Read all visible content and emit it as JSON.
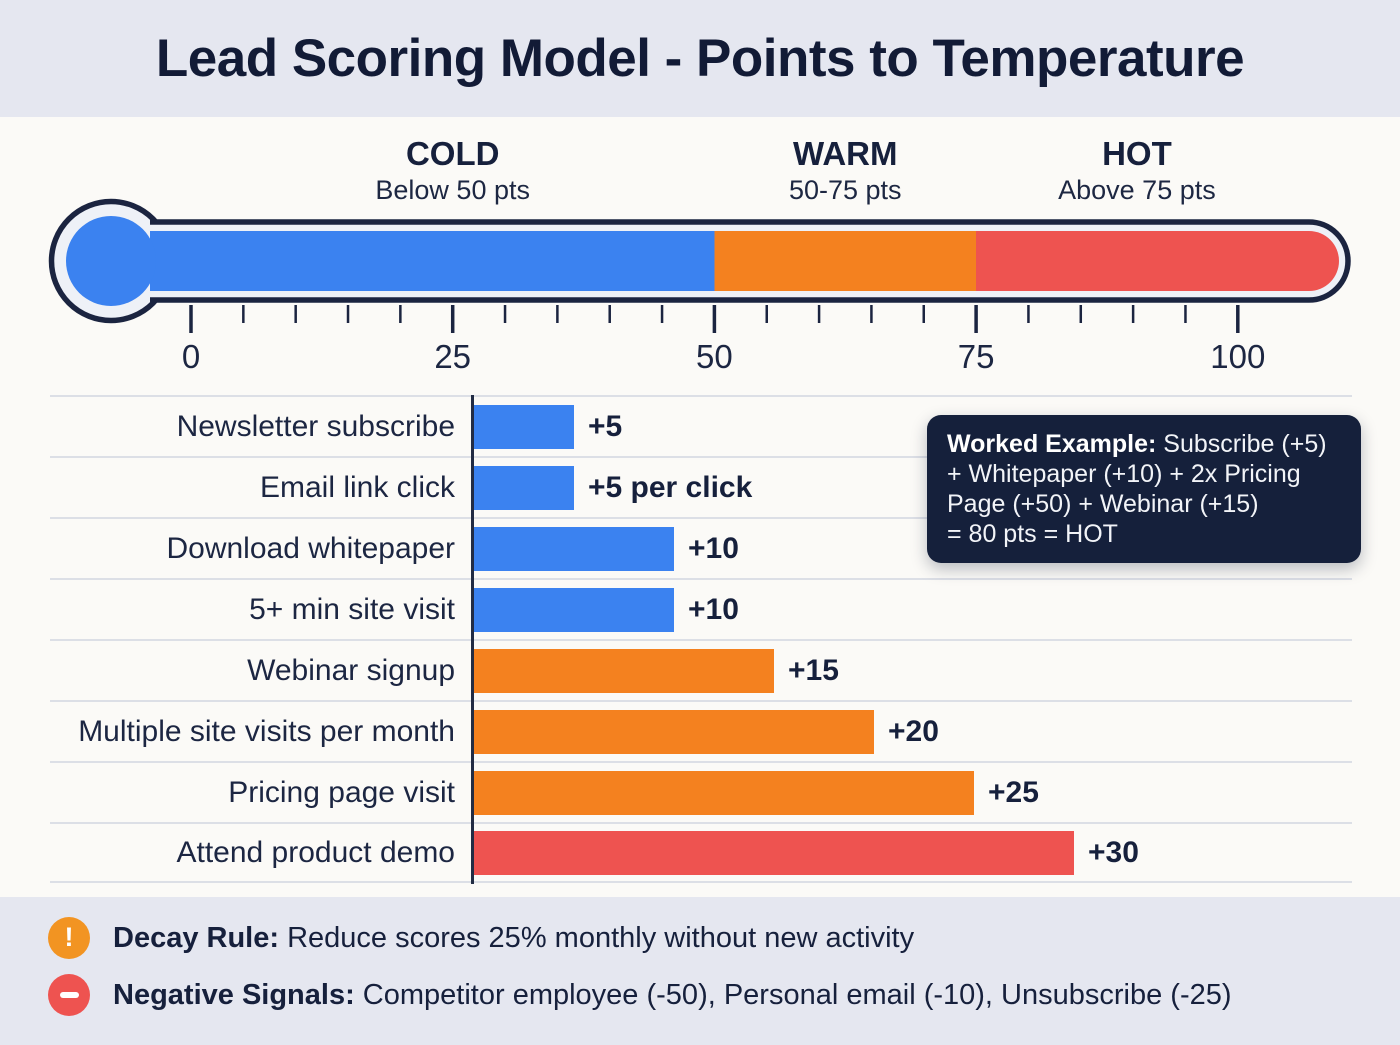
{
  "title": "Lead Scoring Model - Points to Temperature",
  "colors": {
    "navy": "#1b2440",
    "blue": "#3b82f0",
    "orange": "#f4811f",
    "red": "#ee5350",
    "panel_bg": "#e5e7f0",
    "main_bg": "#fbfaf7",
    "dark_box_bg": "#15203b"
  },
  "thermometer": {
    "min": 0,
    "max": 100,
    "cold_until": 50,
    "warm_until": 75,
    "scale_ticks": [
      0,
      25,
      50,
      75,
      100
    ],
    "zones": [
      {
        "name": "COLD",
        "range": "Below 50 pts",
        "color": "#3b82f0"
      },
      {
        "name": "WARM",
        "range": "50-75 pts",
        "color": "#f4811f"
      },
      {
        "name": "HOT",
        "range": "Above 75 pts",
        "color": "#ee5350"
      }
    ]
  },
  "chart_data": {
    "type": "bar",
    "orientation": "horizontal",
    "categories": [
      "Newsletter subscribe",
      "Email link click",
      "Download whitepaper",
      "5+ min site visit",
      "Webinar signup",
      "Multiple site visits per month",
      "Pricing page visit",
      "Attend product demo"
    ],
    "values": [
      5,
      5,
      10,
      10,
      15,
      20,
      25,
      30
    ],
    "value_labels": [
      "+5",
      "+5 per click",
      "+10",
      "+10",
      "+15",
      "+20",
      "+25",
      "+30"
    ],
    "bar_colors": [
      "#3b82f0",
      "#3b82f0",
      "#3b82f0",
      "#3b82f0",
      "#f4811f",
      "#f4811f",
      "#f4811f",
      "#ee5350"
    ],
    "xlim": [
      0,
      30
    ],
    "grid": false,
    "legend": false
  },
  "worked_example": {
    "label": "Worked Example:",
    "lines": [
      "Subscribe (+5)",
      "+ Whitepaper (+10) + 2x Pricing",
      "Page (+50) + Webinar (+15)",
      "= 80 pts = HOT"
    ]
  },
  "notes": [
    {
      "icon": "exclamation-icon",
      "icon_color": "#f29422",
      "label": "Decay Rule:",
      "text": " Reduce scores 25% monthly without new activity"
    },
    {
      "icon": "minus-icon",
      "icon_color": "#ee5350",
      "label": "Negative Signals:",
      "text": " Competitor employee (-50), Personal email (-10), Unsubscribe (-25)"
    }
  ]
}
